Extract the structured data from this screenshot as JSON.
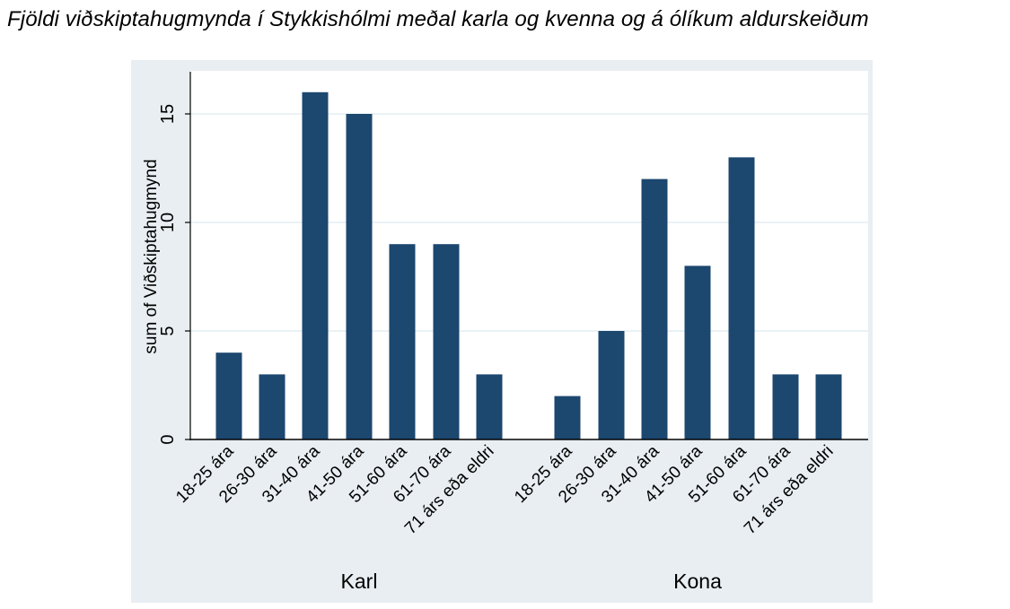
{
  "caption": "Fjöldi viðskiptahugmynda í Stykkishólmi meðal karla og kvenna og á ólíkum aldurskeiðum",
  "chart_data": {
    "type": "bar",
    "title": "",
    "xlabel": "",
    "ylabel": "sum of Viðskiptahugmynd",
    "ylim": [
      0,
      17
    ],
    "yticks": [
      0,
      5,
      10,
      15
    ],
    "grid": true,
    "legend": "none",
    "colors": {
      "bar": "#1c476f",
      "panel": "#e8eef2",
      "plot": "#ffffff",
      "grid": "#e4eef3",
      "axis": "#000000"
    },
    "groups": [
      {
        "name": "Karl",
        "categories": [
          "18-25 ára",
          "26-30 ára",
          "31-40 ára",
          "41-50 ára",
          "51-60 ára",
          "61-70 ára",
          "71 árs eða eldri"
        ],
        "values": [
          4,
          3,
          16,
          15,
          9,
          9,
          3
        ]
      },
      {
        "name": "Kona",
        "categories": [
          "18-25 ára",
          "26-30 ára",
          "31-40 ára",
          "41-50 ára",
          "51-60 ára",
          "61-70 ára",
          "71 árs eða eldri"
        ],
        "values": [
          2,
          5,
          12,
          8,
          13,
          3,
          3
        ]
      }
    ]
  }
}
